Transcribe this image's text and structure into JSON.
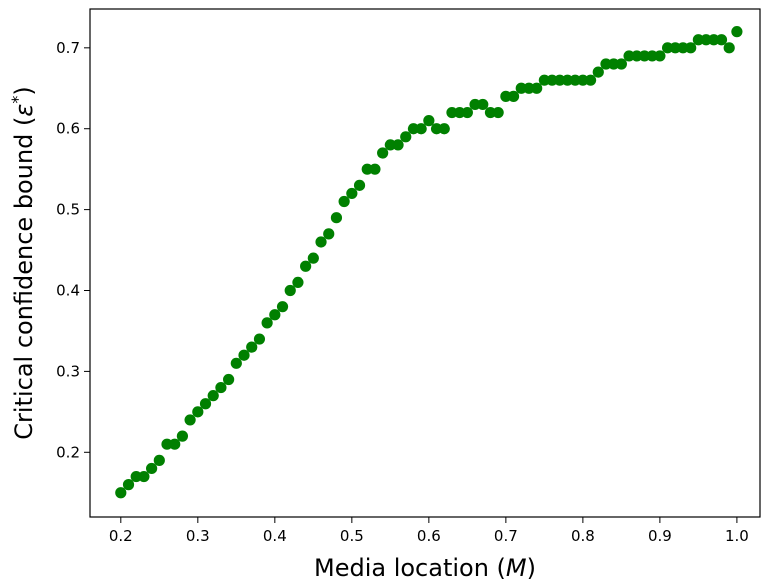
{
  "chart_data": {
    "type": "scatter",
    "title": "",
    "xlabel_parts": [
      "Media location (",
      "M",
      ")"
    ],
    "ylabel_parts": [
      "Critical confidence bound (",
      "ε",
      "*",
      ")"
    ],
    "xlim": [
      0.16,
      1.03
    ],
    "ylim": [
      0.12,
      0.748
    ],
    "xticks": [
      0.2,
      0.3,
      0.4,
      0.5,
      0.6,
      0.7,
      0.8,
      0.9,
      1.0
    ],
    "xtick_labels": [
      "0.2",
      "0.3",
      "0.4",
      "0.5",
      "0.6",
      "0.7",
      "0.8",
      "0.9",
      "1.0"
    ],
    "yticks": [
      0.2,
      0.3,
      0.4,
      0.5,
      0.6,
      0.7
    ],
    "ytick_labels": [
      "0.2",
      "0.3",
      "0.4",
      "0.5",
      "0.6",
      "0.7"
    ],
    "grid": false,
    "marker_color": "#008000",
    "x": [
      0.2,
      0.21,
      0.22,
      0.23,
      0.24,
      0.25,
      0.26,
      0.27,
      0.28,
      0.29,
      0.3,
      0.31,
      0.32,
      0.33,
      0.34,
      0.35,
      0.36,
      0.37,
      0.38,
      0.39,
      0.4,
      0.41,
      0.42,
      0.43,
      0.44,
      0.45,
      0.46,
      0.47,
      0.48,
      0.49,
      0.5,
      0.51,
      0.52,
      0.53,
      0.54,
      0.55,
      0.56,
      0.57,
      0.58,
      0.59,
      0.6,
      0.61,
      0.62,
      0.63,
      0.64,
      0.65,
      0.66,
      0.67,
      0.68,
      0.69,
      0.7,
      0.71,
      0.72,
      0.73,
      0.74,
      0.75,
      0.76,
      0.77,
      0.78,
      0.79,
      0.8,
      0.81,
      0.82,
      0.83,
      0.84,
      0.85,
      0.86,
      0.87,
      0.88,
      0.89,
      0.9,
      0.91,
      0.92,
      0.93,
      0.94,
      0.95,
      0.96,
      0.97,
      0.98,
      0.99,
      1.0
    ],
    "y": [
      0.15,
      0.16,
      0.17,
      0.17,
      0.18,
      0.19,
      0.21,
      0.21,
      0.22,
      0.24,
      0.25,
      0.26,
      0.27,
      0.28,
      0.29,
      0.31,
      0.32,
      0.33,
      0.34,
      0.36,
      0.37,
      0.38,
      0.4,
      0.41,
      0.43,
      0.44,
      0.46,
      0.47,
      0.49,
      0.51,
      0.52,
      0.53,
      0.55,
      0.55,
      0.57,
      0.58,
      0.58,
      0.59,
      0.6,
      0.6,
      0.61,
      0.6,
      0.6,
      0.62,
      0.62,
      0.62,
      0.63,
      0.63,
      0.62,
      0.62,
      0.64,
      0.64,
      0.65,
      0.65,
      0.65,
      0.66,
      0.66,
      0.66,
      0.66,
      0.66,
      0.66,
      0.66,
      0.67,
      0.68,
      0.68,
      0.68,
      0.69,
      0.69,
      0.69,
      0.69,
      0.69,
      0.7,
      0.7,
      0.7,
      0.7,
      0.71,
      0.71,
      0.71,
      0.71,
      0.7,
      0.72
    ]
  }
}
